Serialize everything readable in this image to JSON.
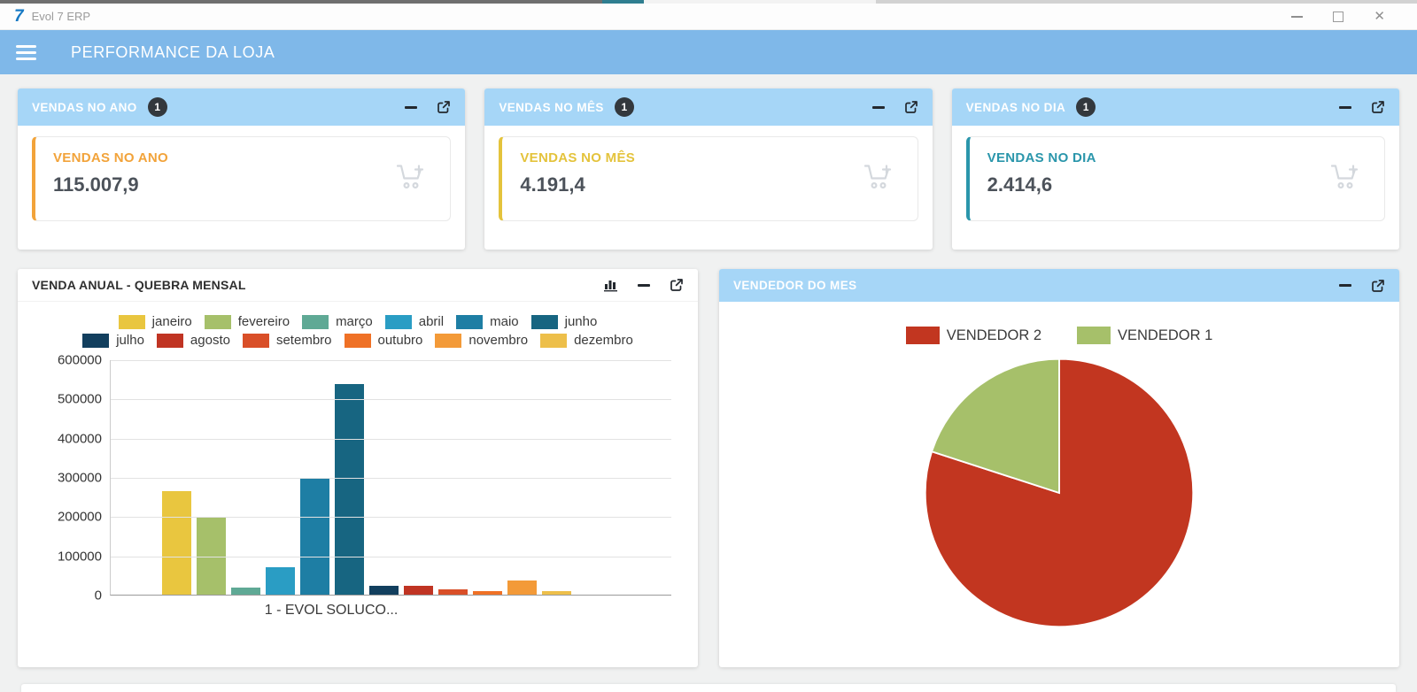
{
  "window": {
    "logo": "7",
    "app_title": "Evol 7 ERP",
    "controls": {
      "minimize": "minimize",
      "maximize": "maximize",
      "close": "✕"
    }
  },
  "header": {
    "title": "PERFORMANCE DA LOJA"
  },
  "kpis": [
    {
      "header": "VENDAS NO ANO",
      "badge": "1",
      "label": "VENDAS NO ANO",
      "value": "115.007,9",
      "accent": "#f2a33a"
    },
    {
      "header": "VENDAS NO MÊS",
      "badge": "1",
      "label": "VENDAS NO MÊS",
      "value": "4.191,4",
      "accent": "#e4c33c"
    },
    {
      "header": "VENDAS NO DIA",
      "badge": "1",
      "label": "VENDAS NO DIA",
      "value": "2.414,6",
      "accent": "#2a96ab"
    }
  ],
  "bar_panel": {
    "title": "VENDA ANUAL - QUEBRA MENSAL"
  },
  "pie_panel": {
    "title": "VENDEDOR DO MES"
  },
  "chart_data": [
    {
      "type": "bar",
      "title": "VENDA ANUAL - QUEBRA MENSAL",
      "category_label": "1 - EVOL SOLUCO...",
      "categories": [
        "janeiro",
        "fevereiro",
        "março",
        "abril",
        "maio",
        "junho",
        "julho",
        "agosto",
        "setembro",
        "outubro",
        "novembro",
        "dezembro"
      ],
      "values": [
        265000,
        197000,
        17000,
        70000,
        295000,
        537000,
        23000,
        23000,
        13000,
        10000,
        35000,
        8000
      ],
      "colors": [
        "#e9c63f",
        "#a6c06a",
        "#5fa995",
        "#2a9dc4",
        "#1e7ea4",
        "#176581",
        "#123f5e",
        "#c03423",
        "#d94f28",
        "#ef7126",
        "#f39a38",
        "#edbf4a"
      ],
      "ylim": [
        0,
        600000
      ],
      "ytick_step": 100000,
      "grid": true,
      "legend_position": "top"
    },
    {
      "type": "pie",
      "title": "VENDEDOR DO MES",
      "labels": [
        "VENDEDOR 2",
        "VENDEDOR 1"
      ],
      "values": [
        80,
        20
      ],
      "colors": [
        "#c23620",
        "#a6c06a"
      ],
      "legend_position": "top"
    }
  ]
}
